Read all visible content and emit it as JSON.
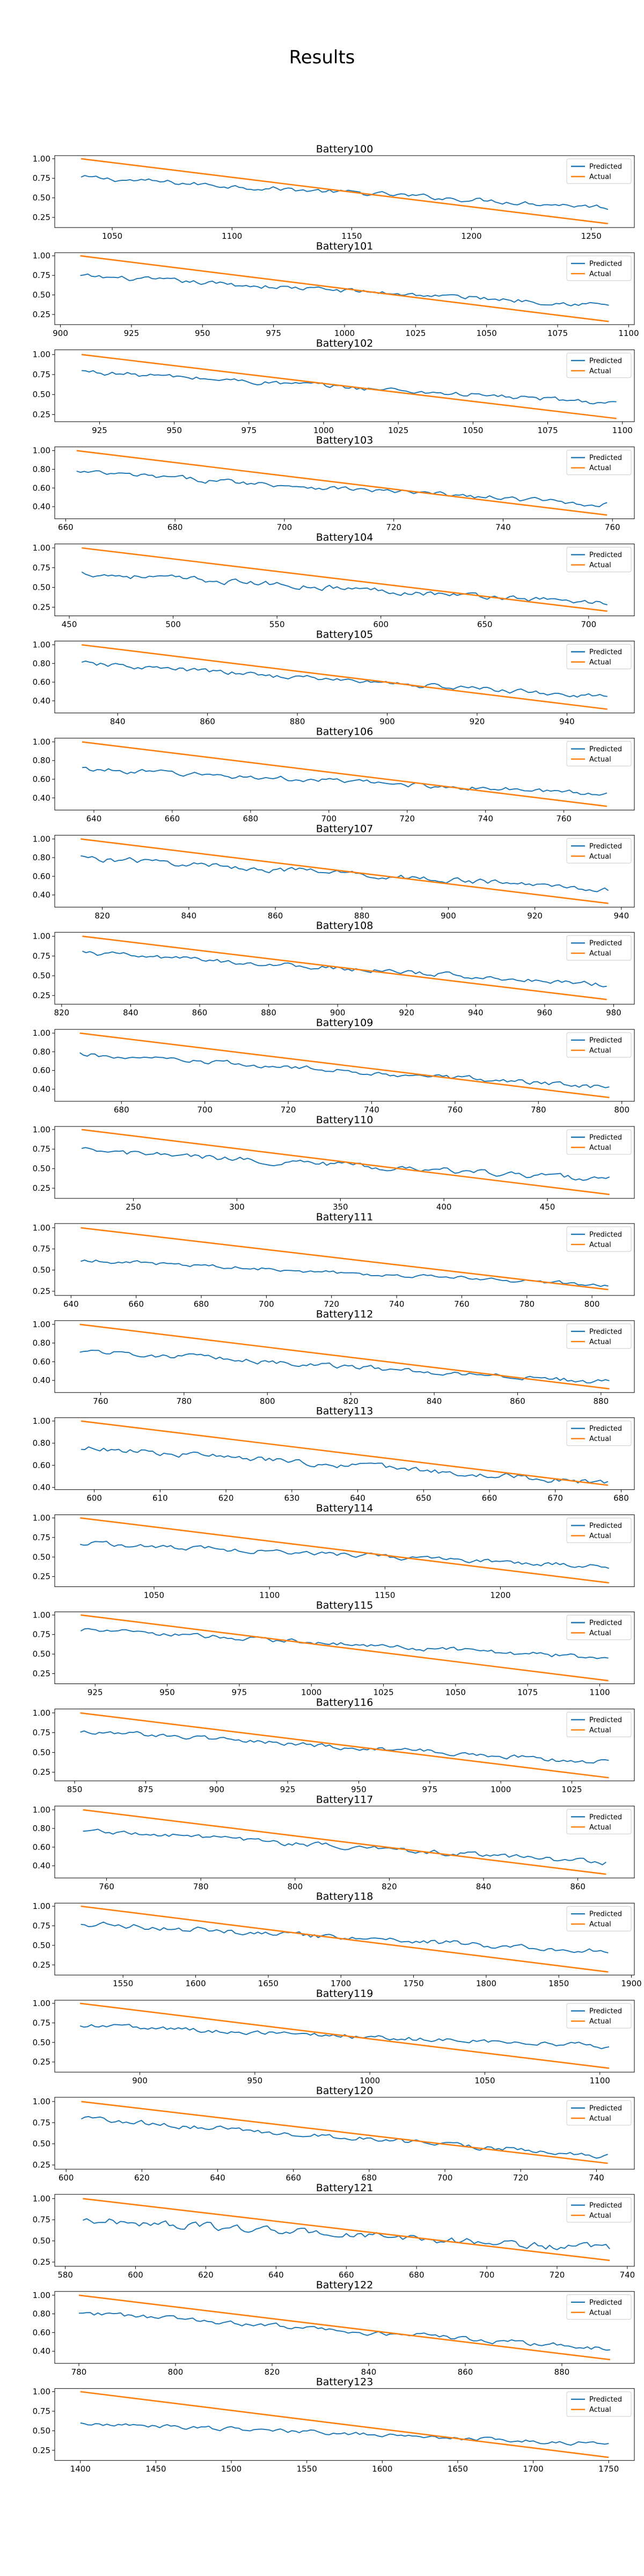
{
  "figure": {
    "title": "Results"
  },
  "colors": {
    "predicted": "#1f77b4",
    "actual": "#ff7f0e",
    "axes": "#000000",
    "background": "#ffffff"
  },
  "chart_data": [
    {
      "type": "line",
      "title": "Battery100",
      "xlim": [
        1026,
        1268
      ],
      "ylim": [
        0.12,
        1.04
      ],
      "xticks": [
        1050,
        1100,
        1150,
        1200,
        1250
      ],
      "yticks": [
        0.25,
        0.5,
        0.75,
        1.0
      ],
      "series": [
        {
          "name": "Predicted",
          "x_start": 1037,
          "x_end": 1257,
          "y_start": 0.76,
          "y_end": 0.38,
          "noise": 0.035
        },
        {
          "name": "Actual",
          "x_start": 1037,
          "x_end": 1257,
          "y_start": 1.0,
          "y_end": 0.17
        }
      ],
      "legend": "upper right",
      "grid": false
    },
    {
      "type": "line",
      "title": "Battery101",
      "xlim": [
        898,
        1102
      ],
      "ylim": [
        0.12,
        1.04
      ],
      "xticks": [
        900,
        925,
        950,
        975,
        1000,
        1025,
        1050,
        1075,
        1100
      ],
      "yticks": [
        0.25,
        0.5,
        0.75,
        1.0
      ],
      "series": [
        {
          "name": "Predicted",
          "x_start": 907,
          "x_end": 1093,
          "y_start": 0.74,
          "y_end": 0.37,
          "noise": 0.035
        },
        {
          "name": "Actual",
          "x_start": 907,
          "x_end": 1093,
          "y_start": 1.0,
          "y_end": 0.16
        }
      ],
      "legend": "upper right",
      "grid": false
    },
    {
      "type": "line",
      "title": "Battery102",
      "xlim": [
        910,
        1104
      ],
      "ylim": [
        0.16,
        1.06
      ],
      "xticks": [
        925,
        950,
        975,
        1000,
        1025,
        1050,
        1075,
        1100
      ],
      "yticks": [
        0.25,
        0.5,
        0.75,
        1.0
      ],
      "series": [
        {
          "name": "Predicted",
          "x_start": 919,
          "x_end": 1098,
          "y_start": 0.79,
          "y_end": 0.39,
          "noise": 0.035
        },
        {
          "name": "Actual",
          "x_start": 919,
          "x_end": 1098,
          "y_start": 1.0,
          "y_end": 0.2
        }
      ],
      "legend": "upper right",
      "grid": false
    },
    {
      "type": "line",
      "title": "Battery103",
      "xlim": [
        658,
        764
      ],
      "ylim": [
        0.27,
        1.04
      ],
      "xticks": [
        660,
        680,
        700,
        720,
        740,
        760
      ],
      "yticks": [
        0.4,
        0.6,
        0.8,
        1.0
      ],
      "series": [
        {
          "name": "Predicted",
          "x_start": 662,
          "x_end": 759,
          "y_start": 0.77,
          "y_end": 0.42,
          "noise": 0.03
        },
        {
          "name": "Actual",
          "x_start": 662,
          "x_end": 759,
          "y_start": 1.0,
          "y_end": 0.31
        }
      ],
      "legend": "upper right",
      "grid": false
    },
    {
      "type": "line",
      "title": "Battery104",
      "xlim": [
        443,
        722
      ],
      "ylim": [
        0.14,
        1.05
      ],
      "xticks": [
        450,
        500,
        550,
        600,
        650,
        700
      ],
      "yticks": [
        0.25,
        0.5,
        0.75,
        1.0
      ],
      "series": [
        {
          "name": "Predicted",
          "x_start": 456,
          "x_end": 709,
          "y_start": 0.68,
          "y_end": 0.3,
          "noise": 0.04
        },
        {
          "name": "Actual",
          "x_start": 456,
          "x_end": 709,
          "y_start": 1.0,
          "y_end": 0.2
        }
      ],
      "legend": "upper right",
      "grid": false
    },
    {
      "type": "line",
      "title": "Battery105",
      "xlim": [
        826,
        955
      ],
      "ylim": [
        0.27,
        1.04
      ],
      "xticks": [
        840,
        860,
        880,
        900,
        920,
        940
      ],
      "yticks": [
        0.4,
        0.6,
        0.8,
        1.0
      ],
      "series": [
        {
          "name": "Predicted",
          "x_start": 832,
          "x_end": 949,
          "y_start": 0.8,
          "y_end": 0.44,
          "noise": 0.03
        },
        {
          "name": "Actual",
          "x_start": 832,
          "x_end": 949,
          "y_start": 1.0,
          "y_end": 0.31
        }
      ],
      "legend": "upper right",
      "grid": false
    },
    {
      "type": "line",
      "title": "Battery106",
      "xlim": [
        630,
        778
      ],
      "ylim": [
        0.27,
        1.04
      ],
      "xticks": [
        640,
        660,
        680,
        700,
        720,
        740,
        760
      ],
      "yticks": [
        0.4,
        0.6,
        0.8,
        1.0
      ],
      "series": [
        {
          "name": "Predicted",
          "x_start": 637,
          "x_end": 771,
          "y_start": 0.71,
          "y_end": 0.44,
          "noise": 0.03
        },
        {
          "name": "Actual",
          "x_start": 637,
          "x_end": 771,
          "y_start": 1.0,
          "y_end": 0.31
        }
      ],
      "legend": "upper right",
      "grid": false
    },
    {
      "type": "line",
      "title": "Battery107",
      "xlim": [
        809,
        943
      ],
      "ylim": [
        0.27,
        1.04
      ],
      "xticks": [
        820,
        840,
        860,
        880,
        900,
        920,
        940
      ],
      "yticks": [
        0.4,
        0.6,
        0.8,
        1.0
      ],
      "series": [
        {
          "name": "Predicted",
          "x_start": 815,
          "x_end": 937,
          "y_start": 0.8,
          "y_end": 0.46,
          "noise": 0.035
        },
        {
          "name": "Actual",
          "x_start": 815,
          "x_end": 937,
          "y_start": 1.0,
          "y_end": 0.31
        }
      ],
      "legend": "upper right",
      "grid": false
    },
    {
      "type": "line",
      "title": "Battery108",
      "xlim": [
        818,
        986
      ],
      "ylim": [
        0.14,
        1.05
      ],
      "xticks": [
        820,
        840,
        860,
        880,
        900,
        920,
        940,
        960,
        980
      ],
      "yticks": [
        0.25,
        0.5,
        0.75,
        1.0
      ],
      "series": [
        {
          "name": "Predicted",
          "x_start": 826,
          "x_end": 978,
          "y_start": 0.79,
          "y_end": 0.39,
          "noise": 0.035
        },
        {
          "name": "Actual",
          "x_start": 826,
          "x_end": 978,
          "y_start": 1.0,
          "y_end": 0.2
        }
      ],
      "legend": "upper right",
      "grid": false
    },
    {
      "type": "line",
      "title": "Battery109",
      "xlim": [
        664,
        803
      ],
      "ylim": [
        0.27,
        1.04
      ],
      "xticks": [
        680,
        700,
        720,
        740,
        760,
        780,
        800
      ],
      "yticks": [
        0.4,
        0.6,
        0.8,
        1.0
      ],
      "series": [
        {
          "name": "Predicted",
          "x_start": 670,
          "x_end": 797,
          "y_start": 0.77,
          "y_end": 0.42,
          "noise": 0.03
        },
        {
          "name": "Actual",
          "x_start": 670,
          "x_end": 797,
          "y_start": 1.0,
          "y_end": 0.31
        }
      ],
      "legend": "upper right",
      "grid": false
    },
    {
      "type": "line",
      "title": "Battery110",
      "xlim": [
        212,
        492
      ],
      "ylim": [
        0.12,
        1.04
      ],
      "xticks": [
        250,
        300,
        350,
        400,
        450
      ],
      "yticks": [
        0.25,
        0.5,
        0.75,
        1.0
      ],
      "series": [
        {
          "name": "Predicted",
          "x_start": 225,
          "x_end": 480,
          "y_start": 0.73,
          "y_end": 0.36,
          "noise": 0.04
        },
        {
          "name": "Actual",
          "x_start": 225,
          "x_end": 480,
          "y_start": 1.0,
          "y_end": 0.17
        }
      ],
      "legend": "upper right",
      "grid": false
    },
    {
      "type": "line",
      "title": "Battery111",
      "xlim": [
        635,
        813
      ],
      "ylim": [
        0.2,
        1.05
      ],
      "xticks": [
        640,
        660,
        680,
        700,
        720,
        740,
        760,
        780,
        800
      ],
      "yticks": [
        0.25,
        0.5,
        0.75,
        1.0
      ],
      "series": [
        {
          "name": "Predicted",
          "x_start": 643,
          "x_end": 805,
          "y_start": 0.62,
          "y_end": 0.32,
          "noise": 0.025
        },
        {
          "name": "Actual",
          "x_start": 643,
          "x_end": 805,
          "y_start": 1.0,
          "y_end": 0.27
        }
      ],
      "legend": "upper right",
      "grid": false
    },
    {
      "type": "line",
      "title": "Battery112",
      "xlim": [
        749,
        888
      ],
      "ylim": [
        0.27,
        1.04
      ],
      "xticks": [
        760,
        780,
        800,
        820,
        840,
        860,
        880
      ],
      "yticks": [
        0.4,
        0.6,
        0.8,
        1.0
      ],
      "series": [
        {
          "name": "Predicted",
          "x_start": 755,
          "x_end": 882,
          "y_start": 0.72,
          "y_end": 0.38,
          "noise": 0.03
        },
        {
          "name": "Actual",
          "x_start": 755,
          "x_end": 882,
          "y_start": 1.0,
          "y_end": 0.31
        }
      ],
      "legend": "upper right",
      "grid": false
    },
    {
      "type": "line",
      "title": "Battery113",
      "xlim": [
        594,
        682
      ],
      "ylim": [
        0.38,
        1.03
      ],
      "xticks": [
        600,
        610,
        620,
        630,
        640,
        650,
        660,
        670,
        680
      ],
      "yticks": [
        0.4,
        0.6,
        0.8,
        1.0
      ],
      "series": [
        {
          "name": "Predicted",
          "x_start": 598,
          "x_end": 678,
          "y_start": 0.76,
          "y_end": 0.44,
          "noise": 0.03
        },
        {
          "name": "Actual",
          "x_start": 598,
          "x_end": 678,
          "y_start": 1.0,
          "y_end": 0.42
        }
      ],
      "legend": "upper right",
      "grid": false
    },
    {
      "type": "line",
      "title": "Battery114",
      "xlim": [
        1007,
        1258
      ],
      "ylim": [
        0.12,
        1.04
      ],
      "xticks": [
        1050,
        1100,
        1150,
        1200
      ],
      "yticks": [
        0.25,
        0.5,
        0.75,
        1.0
      ],
      "series": [
        {
          "name": "Predicted",
          "x_start": 1018,
          "x_end": 1247,
          "y_start": 0.68,
          "y_end": 0.38,
          "noise": 0.035
        },
        {
          "name": "Actual",
          "x_start": 1018,
          "x_end": 1247,
          "y_start": 1.0,
          "y_end": 0.17
        }
      ],
      "legend": "upper right",
      "grid": false
    },
    {
      "type": "line",
      "title": "Battery115",
      "xlim": [
        911,
        1112
      ],
      "ylim": [
        0.12,
        1.04
      ],
      "xticks": [
        925,
        950,
        975,
        1000,
        1025,
        1050,
        1075,
        1100
      ],
      "yticks": [
        0.25,
        0.5,
        0.75,
        1.0
      ],
      "series": [
        {
          "name": "Predicted",
          "x_start": 920,
          "x_end": 1103,
          "y_start": 0.81,
          "y_end": 0.45,
          "noise": 0.035
        },
        {
          "name": "Actual",
          "x_start": 920,
          "x_end": 1103,
          "y_start": 1.0,
          "y_end": 0.16
        }
      ],
      "legend": "upper right",
      "grid": false
    },
    {
      "type": "line",
      "title": "Battery116",
      "xlim": [
        843,
        1047
      ],
      "ylim": [
        0.14,
        1.05
      ],
      "xticks": [
        850,
        875,
        900,
        925,
        950,
        975,
        1000,
        1025
      ],
      "yticks": [
        0.25,
        0.5,
        0.75,
        1.0
      ],
      "series": [
        {
          "name": "Predicted",
          "x_start": 852,
          "x_end": 1038,
          "y_start": 0.77,
          "y_end": 0.37,
          "noise": 0.035
        },
        {
          "name": "Actual",
          "x_start": 852,
          "x_end": 1038,
          "y_start": 1.0,
          "y_end": 0.18
        }
      ],
      "legend": "upper right",
      "grid": false
    },
    {
      "type": "line",
      "title": "Battery117",
      "xlim": [
        749,
        872
      ],
      "ylim": [
        0.27,
        1.04
      ],
      "xticks": [
        760,
        780,
        800,
        820,
        840,
        860
      ],
      "yticks": [
        0.4,
        0.6,
        0.8,
        1.0
      ],
      "series": [
        {
          "name": "Predicted",
          "x_start": 755,
          "x_end": 866,
          "y_start": 0.78,
          "y_end": 0.43,
          "noise": 0.03
        },
        {
          "name": "Actual",
          "x_start": 755,
          "x_end": 866,
          "y_start": 1.0,
          "y_end": 0.31
        }
      ],
      "legend": "upper right",
      "grid": false
    },
    {
      "type": "line",
      "title": "Battery118",
      "xlim": [
        1503,
        1902
      ],
      "ylim": [
        0.12,
        1.04
      ],
      "xticks": [
        1550,
        1600,
        1650,
        1700,
        1750,
        1800,
        1850,
        1900
      ],
      "yticks": [
        0.25,
        0.5,
        0.75,
        1.0
      ],
      "series": [
        {
          "name": "Predicted",
          "x_start": 1521,
          "x_end": 1884,
          "y_start": 0.78,
          "y_end": 0.42,
          "noise": 0.04
        },
        {
          "name": "Actual",
          "x_start": 1521,
          "x_end": 1884,
          "y_start": 1.0,
          "y_end": 0.16
        }
      ],
      "legend": "upper right",
      "grid": false
    },
    {
      "type": "line",
      "title": "Battery119",
      "xlim": [
        863,
        1115
      ],
      "ylim": [
        0.12,
        1.04
      ],
      "xticks": [
        900,
        950,
        1000,
        1050,
        1100
      ],
      "yticks": [
        0.25,
        0.5,
        0.75,
        1.0
      ],
      "series": [
        {
          "name": "Predicted",
          "x_start": 874,
          "x_end": 1104,
          "y_start": 0.72,
          "y_end": 0.45,
          "noise": 0.035
        },
        {
          "name": "Actual",
          "x_start": 874,
          "x_end": 1104,
          "y_start": 1.0,
          "y_end": 0.17
        }
      ],
      "legend": "upper right",
      "grid": false
    },
    {
      "type": "line",
      "title": "Battery120",
      "xlim": [
        597,
        750
      ],
      "ylim": [
        0.2,
        1.05
      ],
      "xticks": [
        600,
        620,
        640,
        660,
        680,
        700,
        720,
        740
      ],
      "yticks": [
        0.25,
        0.5,
        0.75,
        1.0
      ],
      "series": [
        {
          "name": "Predicted",
          "x_start": 604,
          "x_end": 743,
          "y_start": 0.8,
          "y_end": 0.36,
          "noise": 0.035
        },
        {
          "name": "Actual",
          "x_start": 604,
          "x_end": 743,
          "y_start": 1.0,
          "y_end": 0.27
        }
      ],
      "legend": "upper right",
      "grid": false
    },
    {
      "type": "line",
      "title": "Battery121",
      "xlim": [
        577,
        742
      ],
      "ylim": [
        0.2,
        1.05
      ],
      "xticks": [
        580,
        600,
        620,
        640,
        660,
        680,
        700,
        720,
        740
      ],
      "yticks": [
        0.25,
        0.5,
        0.75,
        1.0
      ],
      "series": [
        {
          "name": "Predicted",
          "x_start": 585,
          "x_end": 735,
          "y_start": 0.75,
          "y_end": 0.4,
          "noise": 0.05
        },
        {
          "name": "Actual",
          "x_start": 585,
          "x_end": 735,
          "y_start": 1.0,
          "y_end": 0.27
        }
      ],
      "legend": "upper right",
      "grid": false
    },
    {
      "type": "line",
      "title": "Battery122",
      "xlim": [
        775,
        895
      ],
      "ylim": [
        0.27,
        1.04
      ],
      "xticks": [
        780,
        800,
        820,
        840,
        860,
        880
      ],
      "yticks": [
        0.4,
        0.6,
        0.8,
        1.0
      ],
      "series": [
        {
          "name": "Predicted",
          "x_start": 780,
          "x_end": 890,
          "y_start": 0.81,
          "y_end": 0.43,
          "noise": 0.03
        },
        {
          "name": "Actual",
          "x_start": 780,
          "x_end": 890,
          "y_start": 1.0,
          "y_end": 0.31
        }
      ],
      "legend": "upper right",
      "grid": false
    },
    {
      "type": "line",
      "title": "Battery123",
      "xlim": [
        1383,
        1767
      ],
      "ylim": [
        0.12,
        1.04
      ],
      "xticks": [
        1400,
        1450,
        1500,
        1550,
        1600,
        1650,
        1700,
        1750
      ],
      "yticks": [
        0.25,
        0.5,
        0.75,
        1.0
      ],
      "series": [
        {
          "name": "Predicted",
          "x_start": 1400,
          "x_end": 1750,
          "y_start": 0.6,
          "y_end": 0.33,
          "noise": 0.03
        },
        {
          "name": "Actual",
          "x_start": 1400,
          "x_end": 1750,
          "y_start": 1.0,
          "y_end": 0.16
        }
      ],
      "legend": "upper right",
      "grid": false
    }
  ]
}
